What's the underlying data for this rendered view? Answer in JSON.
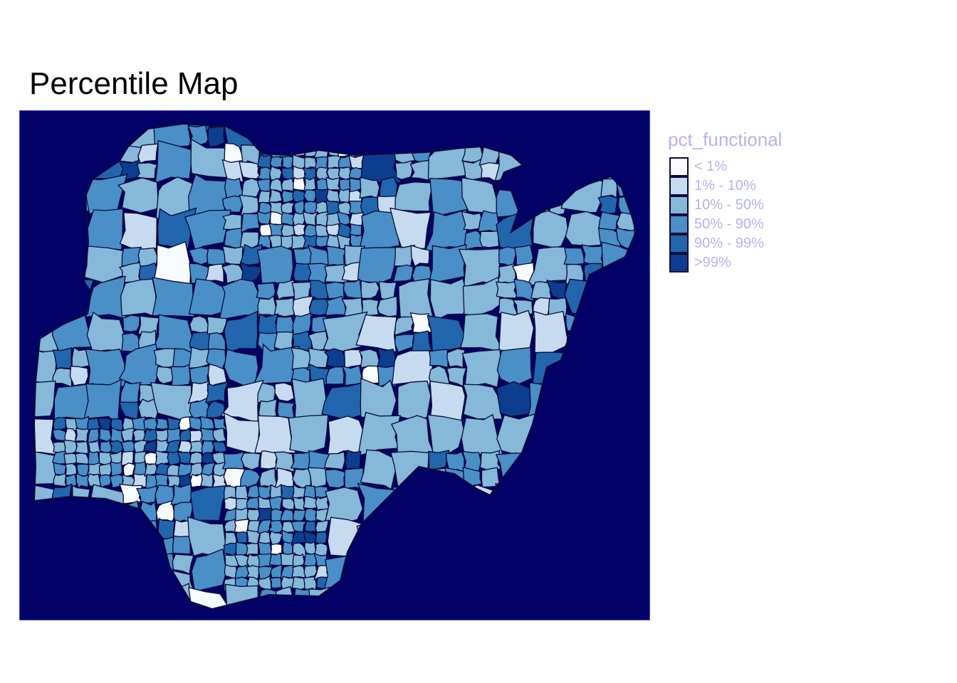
{
  "title": "Percentile Map",
  "colors": {
    "background": "#000066",
    "border": "#0a0a3a",
    "legend_text": "#b3b3f0"
  },
  "legend": {
    "title": "pct_functional",
    "items": [
      {
        "label": "< 1%",
        "color": "#f7fbff"
      },
      {
        "label": "1% - 10%",
        "color": "#c6dbef"
      },
      {
        "label": "10% - 50%",
        "color": "#85b8d9"
      },
      {
        "label": "50% - 90%",
        "color": "#4a8fc7"
      },
      {
        "label": "90% - 99%",
        "color": "#2166ad"
      },
      {
        "label": ">99%",
        "color": "#0c3d8f"
      }
    ]
  }
}
